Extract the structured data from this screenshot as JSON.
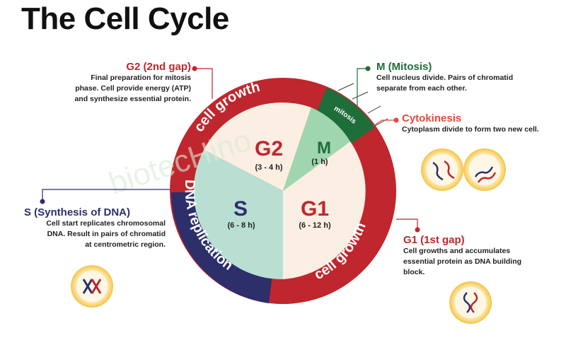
{
  "title": "The Cell Cycle",
  "watermark": "biotecHino",
  "diagram": {
    "arcs": {
      "cell_growth_top": "cell growth",
      "cell_growth_right": "cell growth",
      "dna_replication": "DNA replication",
      "mitosis": "mitosis"
    },
    "sectors": {
      "g2": {
        "name": "G2",
        "duration": "(3 - 4 h)"
      },
      "m": {
        "name": "M",
        "duration": "(1 h)"
      },
      "s": {
        "name": "S",
        "duration": "(6 - 8 h)"
      },
      "g1": {
        "name": "G1",
        "duration": "(6 - 12 h)"
      }
    }
  },
  "callouts": {
    "g2": {
      "heading": "G2 (2nd gap)",
      "lines": [
        "Final preparation for mitosis",
        "phase. Cell provide energy (ATP)",
        "and synthesize essential protein."
      ]
    },
    "m": {
      "heading": "M (Mitosis)",
      "lines": [
        "Cell nucleus divide. Pairs of chromatid",
        "separate from each other."
      ]
    },
    "cytokinesis": {
      "heading": "Cytokinesis",
      "lines": [
        "Cytoplasm divide to form two new cell."
      ]
    },
    "s": {
      "heading": "S (Synthesis of DNA)",
      "lines": [
        "Cell start replicates chromosomal",
        "DNA. Result in pairs of chromatid",
        "at centrometric region."
      ]
    },
    "g1": {
      "heading": "G1 (1st gap)",
      "lines": [
        "Cell growths and accumulates",
        "essential protein as DNA building",
        "block."
      ]
    }
  },
  "colors": {
    "growth_red": "#c0262d",
    "dna_navy": "#2d2f6b",
    "mitosis_green": "#1e6e3a",
    "g2_fill": "#fbeee2",
    "g1_fill": "#fbeee2",
    "s_fill": "#b9dfd3",
    "m_fill": "#9fd6b0",
    "cytokinesis_coral": "#e14b3b",
    "cell_yellow": "#f6c445"
  }
}
